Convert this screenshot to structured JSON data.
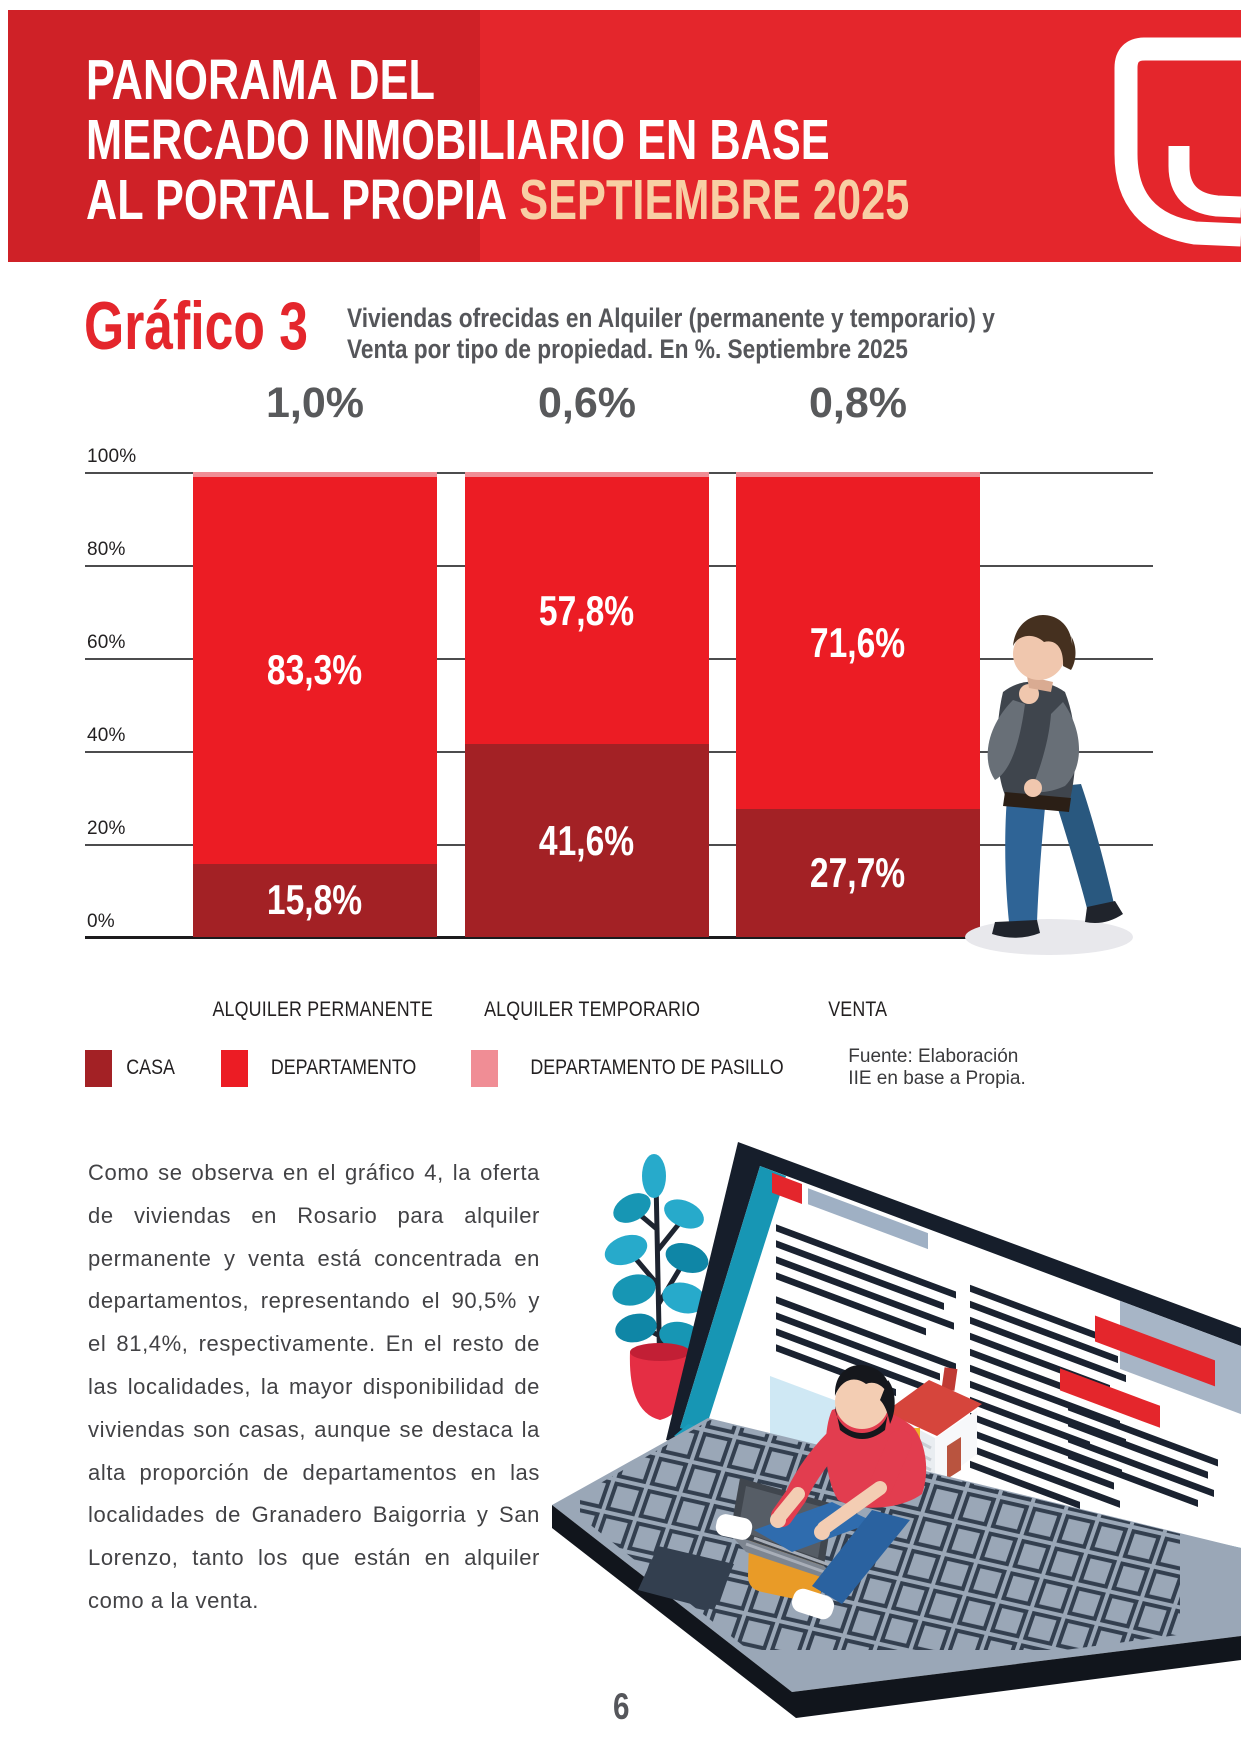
{
  "header": {
    "title_line1": "PANORAMA DEL",
    "title_line2": "MERCADO INMOBILIARIO EN BASE",
    "title_line3": "AL PORTAL PROPIA",
    "title_line3_highlight": "SEPTIEMBRE 2025"
  },
  "figure": {
    "label": "Gráfico 3",
    "subtitle_line1": "Viviendas ofrecidas en Alquiler (permanente y temporario) y",
    "subtitle_line2": "Venta por tipo de propiedad. En %. Septiembre 2025"
  },
  "chart_data": {
    "type": "bar",
    "stacked": true,
    "title": "Viviendas ofrecidas en Alquiler (permanente y temporario) y Venta por tipo de propiedad. En %. Septiembre 2025",
    "categories": [
      "ALQUILER PERMANENTE",
      "ALQUILER TEMPORARIO",
      "VENTA"
    ],
    "series": [
      {
        "name": "CASA",
        "color": "#a32125",
        "values": [
          15.8,
          41.6,
          27.7
        ],
        "labels": [
          "15,8%",
          "41,6%",
          "27,7%"
        ]
      },
      {
        "name": "DEPARTAMENTO",
        "color": "#ec1c24",
        "values": [
          83.3,
          57.8,
          71.6
        ],
        "labels": [
          "83,3%",
          "57,8%",
          "71,6%"
        ]
      },
      {
        "name": "DEPARTAMENTO DE PASILLO",
        "color": "#f08d95",
        "values": [
          1.0,
          0.6,
          0.8
        ],
        "labels": [
          "1,0%",
          "0,6%",
          "0,8%"
        ]
      }
    ],
    "total_labels": [
      "1,0%",
      "0,6%",
      "0,8%"
    ],
    "y_ticks": [
      "100%",
      "80%",
      "60%",
      "40%",
      "20%",
      "0%"
    ],
    "ylim": [
      0,
      100
    ],
    "xlabel": "",
    "ylabel": "",
    "grid": true,
    "legend_position": "bottom"
  },
  "source": "Fuente: Elaboración IIE en base a Propia.",
  "body": {
    "paragraph": "Como se observa en el gráfico 4, la oferta de viviendas en Rosario para alquiler permanente y venta está concentrada en departamentos, representando el 90,5% y el 81,4%, respectivamente. En el resto de las localidades, la mayor disponibilidad de viviendas son casas, aunque se destaca la alta proporción de departamentos en las localidades de Granadero Baigorria y San Lorenzo, tanto los que están en alquiler como a la venta."
  },
  "footer": {
    "page_number": "6"
  },
  "illustrations": {
    "logo": "u-shield-smile-logo",
    "chart_side": "man-thinking-illustration",
    "bottom_scene": "man-sitting-on-suitcase-browsing-real-estate-laptop-illustration"
  },
  "colors": {
    "banner-red": "#e4262c",
    "banner-red-dark": "#cf2127",
    "highlight-cream": "#f8cfa4",
    "casa-dark-red": "#a32125",
    "departamento-red": "#ec1c24",
    "pasillo-pink": "#f08d95",
    "label-gray": "#58595b"
  }
}
